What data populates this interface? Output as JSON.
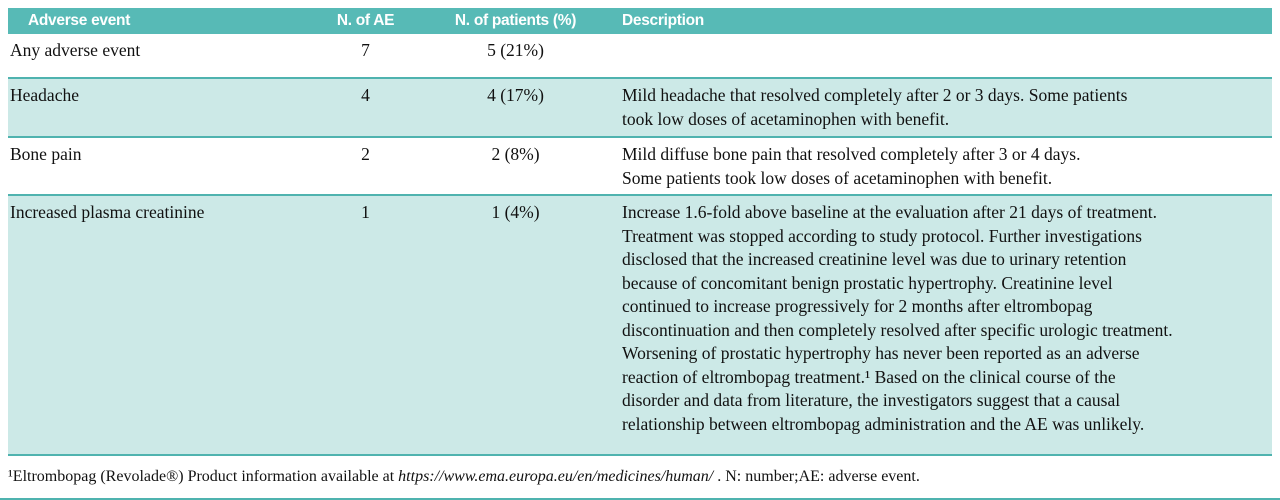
{
  "table": {
    "columns": [
      "Adverse event",
      "N. of AE",
      "N. of patients (%)",
      "Description"
    ],
    "rows": [
      {
        "event": "Any adverse event",
        "n_ae": "7",
        "n_patients": "5 (21%)",
        "description": ""
      },
      {
        "event": "Headache",
        "n_ae": "4",
        "n_patients": "4 (17%)",
        "description": "Mild headache that resolved completely after 2 or 3 days. Some patients\ntook low doses of acetaminophen with benefit."
      },
      {
        "event": "Bone pain",
        "n_ae": "2",
        "n_patients": "2 (8%)",
        "description": "Mild diffuse bone pain that resolved completely after 3 or 4 days.\nSome patients took low doses of acetaminophen with benefit."
      },
      {
        "event": "Increased plasma creatinine",
        "n_ae": "1",
        "n_patients": "1 (4%)",
        "description": "Increase 1.6-fold above baseline at the evaluation after 21 days of treatment.\nTreatment was stopped according to study protocol. Further investigations\ndisclosed that the increased creatinine level was due to urinary retention\nbecause of concomitant benign prostatic hypertrophy. Creatinine level\ncontinued to increase progressively for 2 months after eltrombopag\ndiscontinuation and then completely resolved after specific urologic treatment.\nWorsening of prostatic hypertrophy has never been reported as an adverse\nreaction of eltrombopag treatment.¹ Based on the clinical course of the\ndisorder and data from literature, the investigators suggest that a causal\nrelationship between eltrombopag administration and the AE was unlikely."
      }
    ]
  },
  "footnote": {
    "prefix": "¹Eltrombopag (Revolade®) Product information available at ",
    "url": "https://www.ema.europa.eu/en/medicines/human/",
    "suffix": " .  N: number;AE: adverse event."
  },
  "colors": {
    "header_bg": "#57bab6",
    "alt_row_bg": "#cce9e7",
    "rule": "#4fb3af",
    "header_text": "#ffffff",
    "body_text": "#111111"
  }
}
